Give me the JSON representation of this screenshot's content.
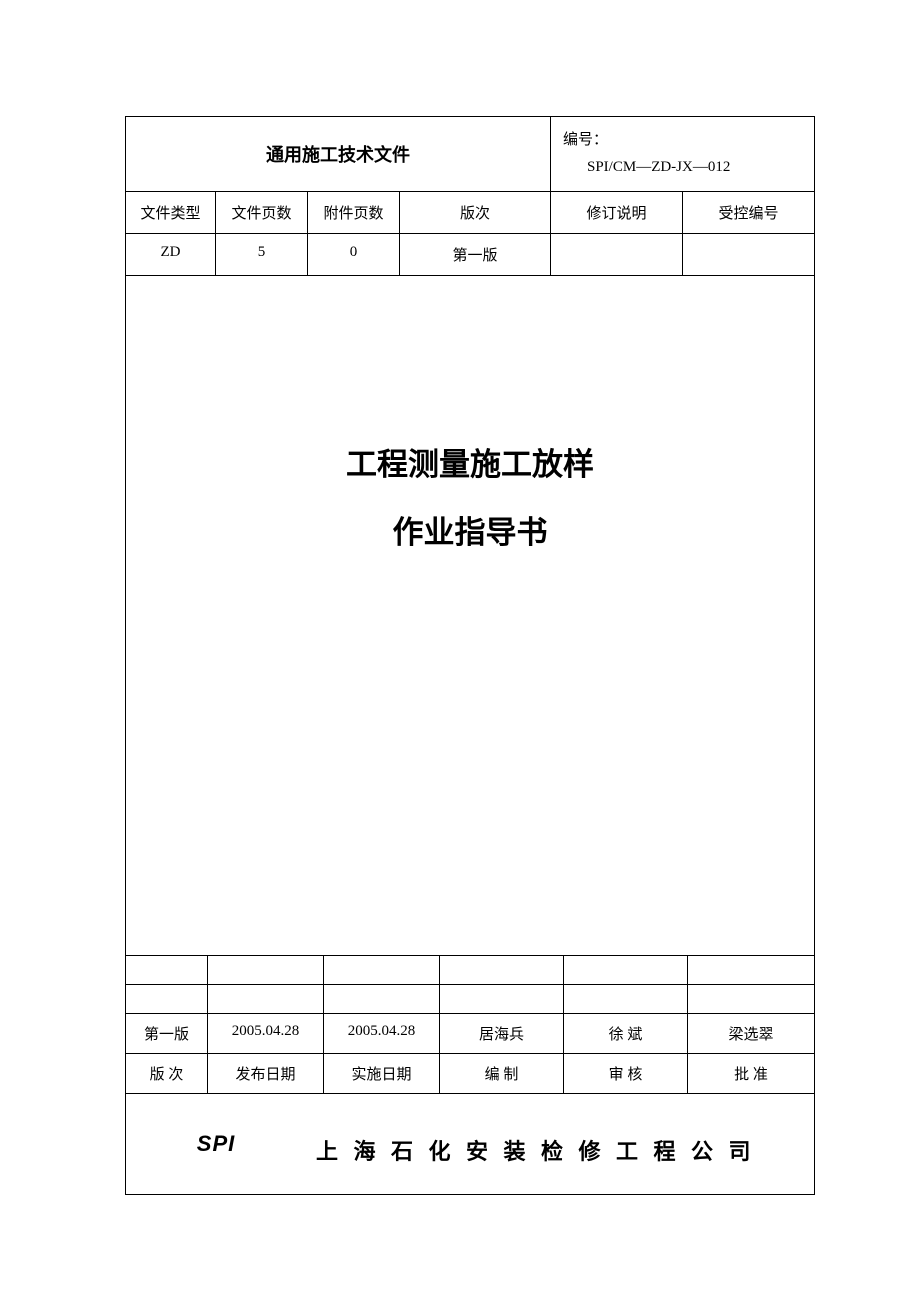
{
  "header": {
    "title": "通用施工技术文件",
    "doc_label": "编号：",
    "doc_code": "SPI/CM—ZD-JX—012"
  },
  "meta": {
    "headers": {
      "file_type": "文件类型",
      "file_pages": "文件页数",
      "attachment_pages": "附件页数",
      "version": "版次",
      "revision_note": "修订说明",
      "control_number": "受控编号"
    },
    "values": {
      "file_type": "ZD",
      "file_pages": "5",
      "attachment_pages": "0",
      "version": "第一版",
      "revision_note": "",
      "control_number": ""
    }
  },
  "doc_title": {
    "line1": "工程测量施工放样",
    "line2": "作业指导书"
  },
  "approval": {
    "empty_cells": [
      "",
      "",
      "",
      "",
      "",
      ""
    ],
    "value_row": {
      "version": "第一版",
      "issue_date": "2005.04.28",
      "impl_date": "2005.04.28",
      "author": "居海兵",
      "reviewer": "徐  斌",
      "approver": "梁选翠"
    },
    "label_row": {
      "version": "版 次",
      "issue_date": "发布日期",
      "impl_date": "实施日期",
      "author": "编  制",
      "reviewer": "审  核",
      "approver": "批  准"
    }
  },
  "footer": {
    "logo_text": "SPI",
    "company": "上 海 石 化 安 装 检 修 工 程 公 司"
  }
}
